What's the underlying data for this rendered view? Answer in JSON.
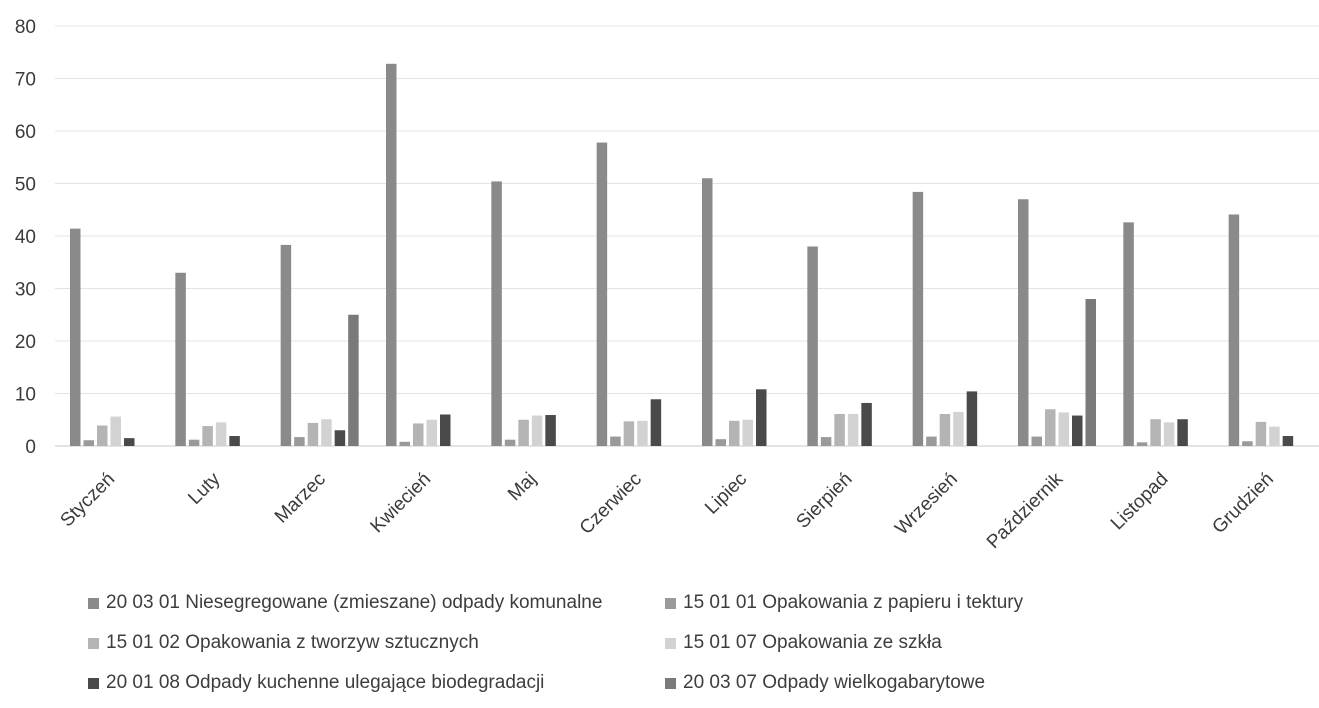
{
  "chart_data": {
    "type": "bar",
    "categories": [
      "Styczeń",
      "Luty",
      "Marzec",
      "Kwiecień",
      "Maj",
      "Czerwiec",
      "Lipiec",
      "Sierpień",
      "Wrzesień",
      "Październik",
      "Listopad",
      "Grudzień"
    ],
    "ylim": [
      0,
      80
    ],
    "yticks": [
      0,
      10,
      20,
      30,
      40,
      50,
      60,
      70,
      80
    ],
    "grid": true,
    "legend_position": "bottom",
    "series": [
      {
        "name": "20 03 01 Niesegregowane (zmieszane) odpady komunalne",
        "color": "#8a8a8a",
        "values": [
          41.4,
          33.0,
          38.3,
          72.8,
          50.4,
          57.8,
          51.0,
          38.0,
          48.4,
          47.0,
          42.6,
          44.1
        ]
      },
      {
        "name": "15 01 01 Opakowania z papieru i tektury",
        "color": "#9a9a9a",
        "values": [
          1.1,
          1.2,
          1.7,
          0.8,
          1.2,
          1.8,
          1.3,
          1.7,
          1.8,
          1.8,
          0.7,
          0.9
        ]
      },
      {
        "name": "15 01 02 Opakowania z tworzyw sztucznych",
        "color": "#b4b4b4",
        "values": [
          3.9,
          3.8,
          4.4,
          4.3,
          5.0,
          4.7,
          4.8,
          6.1,
          6.1,
          7.0,
          5.1,
          4.6
        ]
      },
      {
        "name": "15 01 07 Opakowania ze szkła",
        "color": "#d2d2d2",
        "values": [
          5.6,
          4.5,
          5.1,
          5.0,
          5.8,
          4.8,
          5.0,
          6.1,
          6.5,
          6.4,
          4.5,
          3.7
        ]
      },
      {
        "name": "20 01 08 Odpady kuchenne ulegające biodegradacji",
        "color": "#4a4a4a",
        "values": [
          1.5,
          1.9,
          3.0,
          6.0,
          5.9,
          8.9,
          10.8,
          8.2,
          10.4,
          5.8,
          5.1,
          1.9
        ]
      },
      {
        "name": "20 03 07 Odpady wielkogabarytowe",
        "color": "#7a7a7a",
        "values": [
          0,
          0,
          25.0,
          0,
          0,
          0,
          0,
          0,
          0,
          28.0,
          0,
          0
        ]
      }
    ]
  }
}
